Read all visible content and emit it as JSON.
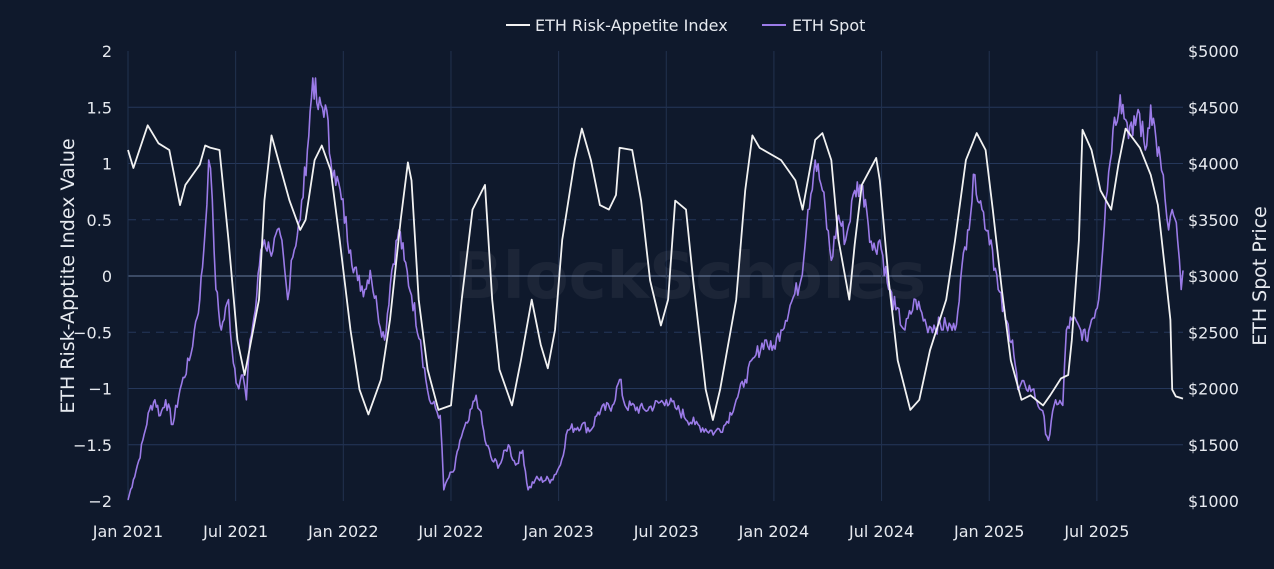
{
  "chart_data": {
    "type": "line",
    "title": "",
    "watermark": "BlockScholes",
    "legend": {
      "placement": "top-center",
      "entries": [
        "ETH Risk-Appetite Index",
        "ETH Spot"
      ]
    },
    "x_unit": "months since Jan 2021",
    "xlim": [
      0,
      58.8
    ],
    "x_ticks": [
      {
        "label": "Jan 2021",
        "value": 0
      },
      {
        "label": "Jul 2021",
        "value": 6
      },
      {
        "label": "Jan 2022",
        "value": 12
      },
      {
        "label": "Jul 2022",
        "value": 18
      },
      {
        "label": "Jan 2023",
        "value": 24
      },
      {
        "label": "Jul 2023",
        "value": 30
      },
      {
        "label": "Jan 2024",
        "value": 36
      },
      {
        "label": "Jul 2024",
        "value": 42
      },
      {
        "label": "Jan 2025",
        "value": 48
      },
      {
        "label": "Jul 2025",
        "value": 54
      }
    ],
    "y_left": {
      "label": "ETH Risk-Apptite Index Value",
      "ylim": [
        -2,
        2
      ],
      "ticks": [
        {
          "v": 2,
          "label": "2"
        },
        {
          "v": 1.5,
          "label": "1.5"
        },
        {
          "v": 1,
          "label": "1"
        },
        {
          "v": 0.5,
          "label": "0.5"
        },
        {
          "v": 0,
          "label": "0"
        },
        {
          "v": -0.5,
          "label": "−0.5"
        },
        {
          "v": -1,
          "label": "−1"
        },
        {
          "v": -1.5,
          "label": "−1.5"
        },
        {
          "v": -2,
          "label": "−2"
        }
      ],
      "dashed": [
        0.5,
        -0.5
      ]
    },
    "y_right": {
      "label": "ETH Spot Price",
      "ylim": [
        1000,
        5000
      ],
      "ticks": [
        {
          "v": 5000,
          "label": "$5000"
        },
        {
          "v": 4500,
          "label": "$4500"
        },
        {
          "v": 4000,
          "label": "$4000"
        },
        {
          "v": 3500,
          "label": "$3500"
        },
        {
          "v": 3000,
          "label": "$3000"
        },
        {
          "v": 2500,
          "label": "$2500"
        },
        {
          "v": 2000,
          "label": "$2000"
        },
        {
          "v": 1500,
          "label": "$1500"
        },
        {
          "v": 1000,
          "label": "$1000"
        }
      ]
    },
    "series": [
      {
        "name": "ETH Risk-Appetite Index",
        "axis": "left",
        "color": "#f2f2f2",
        "points": [
          [
            0,
            1.12
          ],
          [
            0.3,
            0.96
          ],
          [
            1.1,
            1.34
          ],
          [
            1.7,
            1.18
          ],
          [
            2.3,
            1.12
          ],
          [
            2.9,
            0.63
          ],
          [
            3.2,
            0.81
          ],
          [
            4.0,
            0.99
          ],
          [
            4.3,
            1.16
          ],
          [
            4.6,
            1.14
          ],
          [
            5.1,
            1.12
          ],
          [
            5.6,
            0.32
          ],
          [
            6.1,
            -0.57
          ],
          [
            6.5,
            -0.88
          ],
          [
            7.3,
            -0.21
          ],
          [
            7.6,
            0.67
          ],
          [
            8.0,
            1.25
          ],
          [
            9.0,
            0.67
          ],
          [
            9.6,
            0.41
          ],
          [
            9.9,
            0.5
          ],
          [
            10.4,
            1.03
          ],
          [
            10.8,
            1.16
          ],
          [
            11.3,
            0.94
          ],
          [
            11.8,
            0.32
          ],
          [
            12.4,
            -0.48
          ],
          [
            12.9,
            -1.01
          ],
          [
            13.4,
            -1.23
          ],
          [
            14.1,
            -0.92
          ],
          [
            14.6,
            -0.39
          ],
          [
            15.2,
            0.5
          ],
          [
            15.6,
            1.01
          ],
          [
            15.8,
            0.85
          ],
          [
            16.2,
            -0.21
          ],
          [
            16.7,
            -0.83
          ],
          [
            17.3,
            -1.19
          ],
          [
            18.0,
            -1.15
          ],
          [
            18.6,
            -0.21
          ],
          [
            19.2,
            0.59
          ],
          [
            19.9,
            0.81
          ],
          [
            20.3,
            -0.21
          ],
          [
            20.7,
            -0.83
          ],
          [
            21.4,
            -1.15
          ],
          [
            21.9,
            -0.75
          ],
          [
            22.5,
            -0.21
          ],
          [
            23.0,
            -0.61
          ],
          [
            23.4,
            -0.82
          ],
          [
            23.8,
            -0.48
          ],
          [
            24.2,
            0.32
          ],
          [
            24.9,
            1.03
          ],
          [
            25.3,
            1.31
          ],
          [
            25.8,
            1.03
          ],
          [
            26.3,
            0.63
          ],
          [
            26.8,
            0.59
          ],
          [
            27.2,
            0.72
          ],
          [
            27.4,
            1.14
          ],
          [
            28.1,
            1.12
          ],
          [
            28.6,
            0.67
          ],
          [
            29.1,
            -0.04
          ],
          [
            29.7,
            -0.44
          ],
          [
            30.1,
            -0.21
          ],
          [
            30.5,
            0.67
          ],
          [
            31.1,
            0.59
          ],
          [
            31.5,
            -0.04
          ],
          [
            32.2,
            -1.01
          ],
          [
            32.6,
            -1.28
          ],
          [
            33.0,
            -1.01
          ],
          [
            33.9,
            -0.21
          ],
          [
            34.4,
            0.76
          ],
          [
            34.8,
            1.25
          ],
          [
            35.2,
            1.14
          ],
          [
            36.4,
            1.03
          ],
          [
            37.2,
            0.85
          ],
          [
            37.6,
            0.59
          ],
          [
            38.3,
            1.21
          ],
          [
            38.7,
            1.27
          ],
          [
            39.2,
            1.03
          ],
          [
            39.6,
            0.32
          ],
          [
            40.2,
            -0.21
          ],
          [
            40.5,
            0.28
          ],
          [
            40.9,
            0.81
          ],
          [
            41.7,
            1.05
          ],
          [
            41.9,
            0.85
          ],
          [
            42.4,
            -0.04
          ],
          [
            42.9,
            -0.75
          ],
          [
            43.6,
            -1.19
          ],
          [
            44.1,
            -1.1
          ],
          [
            44.7,
            -0.66
          ],
          [
            45.6,
            -0.21
          ],
          [
            46.1,
            0.32
          ],
          [
            46.7,
            1.03
          ],
          [
            47.3,
            1.27
          ],
          [
            47.8,
            1.12
          ],
          [
            48.2,
            0.59
          ],
          [
            48.7,
            -0.12
          ],
          [
            49.2,
            -0.75
          ],
          [
            49.8,
            -1.1
          ],
          [
            50.3,
            -1.06
          ],
          [
            51.0,
            -1.15
          ],
          [
            51.4,
            -1.06
          ],
          [
            52.0,
            -0.91
          ],
          [
            52.4,
            -0.88
          ],
          [
            52.6,
            -0.57
          ],
          [
            53.0,
            0.32
          ],
          [
            53.2,
            1.3
          ],
          [
            53.7,
            1.12
          ],
          [
            54.2,
            0.76
          ],
          [
            54.8,
            0.59
          ],
          [
            55.2,
            0.99
          ],
          [
            55.6,
            1.31
          ],
          [
            56.4,
            1.14
          ],
          [
            57.0,
            0.9
          ],
          [
            57.4,
            0.63
          ],
          [
            57.8,
            0.05
          ],
          [
            58.1,
            -0.39
          ],
          [
            58.2,
            -1.01
          ],
          [
            58.4,
            -1.07
          ],
          [
            58.8,
            -1.09
          ]
        ]
      },
      {
        "name": "ETH Spot",
        "axis": "right",
        "color": "#9b7be8",
        "points": [
          [
            0,
            1010
          ],
          [
            0.3,
            1190
          ],
          [
            0.6,
            1360
          ],
          [
            0.9,
            1590
          ],
          [
            1.2,
            1810
          ],
          [
            1.5,
            1900
          ],
          [
            1.8,
            1760
          ],
          [
            2.1,
            1900
          ],
          [
            2.5,
            1680
          ],
          [
            2.9,
            1990
          ],
          [
            3.5,
            2300
          ],
          [
            3.7,
            2520
          ],
          [
            4.0,
            2790
          ],
          [
            4.3,
            3410
          ],
          [
            4.5,
            4030
          ],
          [
            4.7,
            3680
          ],
          [
            4.9,
            2880
          ],
          [
            5.2,
            2520
          ],
          [
            5.6,
            2790
          ],
          [
            5.8,
            2340
          ],
          [
            6.1,
            2030
          ],
          [
            6.4,
            2120
          ],
          [
            6.6,
            1900
          ],
          [
            6.8,
            2430
          ],
          [
            7.1,
            2700
          ],
          [
            7.4,
            3230
          ],
          [
            7.6,
            3320
          ],
          [
            7.9,
            3230
          ],
          [
            8.5,
            3360
          ],
          [
            8.9,
            2790
          ],
          [
            9.1,
            3140
          ],
          [
            9.6,
            3500
          ],
          [
            10.0,
            4120
          ],
          [
            10.3,
            4760
          ],
          [
            10.6,
            4480
          ],
          [
            11.0,
            4520
          ],
          [
            11.3,
            4030
          ],
          [
            11.5,
            3940
          ],
          [
            11.9,
            3680
          ],
          [
            12.4,
            3230
          ],
          [
            12.8,
            2960
          ],
          [
            13.2,
            2880
          ],
          [
            13.5,
            3050
          ],
          [
            13.9,
            2700
          ],
          [
            14.3,
            2430
          ],
          [
            14.7,
            3050
          ],
          [
            15.1,
            3410
          ],
          [
            15.4,
            3140
          ],
          [
            15.8,
            2830
          ],
          [
            16.3,
            2430
          ],
          [
            16.6,
            2080
          ],
          [
            16.8,
            1900
          ],
          [
            17.4,
            1760
          ],
          [
            17.6,
            1100
          ],
          [
            17.8,
            1190
          ],
          [
            18.2,
            1280
          ],
          [
            18.5,
            1540
          ],
          [
            19.0,
            1720
          ],
          [
            19.4,
            1940
          ],
          [
            19.6,
            1810
          ],
          [
            19.9,
            1540
          ],
          [
            20.3,
            1360
          ],
          [
            20.7,
            1320
          ],
          [
            21.2,
            1500
          ],
          [
            21.6,
            1320
          ],
          [
            22.0,
            1450
          ],
          [
            22.3,
            1100
          ],
          [
            22.7,
            1190
          ],
          [
            23.6,
            1190
          ],
          [
            24.1,
            1320
          ],
          [
            24.5,
            1630
          ],
          [
            25.3,
            1680
          ],
          [
            25.8,
            1630
          ],
          [
            26.2,
            1790
          ],
          [
            27.0,
            1850
          ],
          [
            27.4,
            2080
          ],
          [
            27.7,
            1850
          ],
          [
            28.8,
            1810
          ],
          [
            30.0,
            1900
          ],
          [
            30.5,
            1830
          ],
          [
            31.6,
            1680
          ],
          [
            32.7,
            1610
          ],
          [
            33.3,
            1680
          ],
          [
            33.9,
            1900
          ],
          [
            34.4,
            2080
          ],
          [
            35.0,
            2300
          ],
          [
            35.5,
            2430
          ],
          [
            35.9,
            2340
          ],
          [
            36.4,
            2520
          ],
          [
            36.9,
            2740
          ],
          [
            37.5,
            2960
          ],
          [
            37.9,
            3590
          ],
          [
            38.3,
            4030
          ],
          [
            38.7,
            3760
          ],
          [
            39.2,
            3140
          ],
          [
            39.6,
            3540
          ],
          [
            40.0,
            3320
          ],
          [
            40.5,
            3760
          ],
          [
            40.8,
            3810
          ],
          [
            41.1,
            3680
          ],
          [
            41.5,
            3230
          ],
          [
            41.9,
            3320
          ],
          [
            42.4,
            2880
          ],
          [
            42.8,
            2700
          ],
          [
            43.3,
            2520
          ],
          [
            43.9,
            2790
          ],
          [
            44.5,
            2560
          ],
          [
            45.6,
            2560
          ],
          [
            46.1,
            2520
          ],
          [
            46.4,
            2960
          ],
          [
            46.8,
            3410
          ],
          [
            47.2,
            3900
          ],
          [
            47.6,
            3590
          ],
          [
            48.1,
            3320
          ],
          [
            48.5,
            2880
          ],
          [
            48.9,
            2610
          ],
          [
            49.3,
            2430
          ],
          [
            49.6,
            1990
          ],
          [
            50.0,
            2030
          ],
          [
            50.4,
            1990
          ],
          [
            50.9,
            1810
          ],
          [
            51.3,
            1540
          ],
          [
            51.7,
            1900
          ],
          [
            52.1,
            1850
          ],
          [
            52.3,
            2520
          ],
          [
            52.6,
            2610
          ],
          [
            53.1,
            2520
          ],
          [
            53.4,
            2430
          ],
          [
            53.7,
            2610
          ],
          [
            54.1,
            2790
          ],
          [
            54.5,
            3680
          ],
          [
            54.9,
            4300
          ],
          [
            55.3,
            4610
          ],
          [
            55.6,
            4390
          ],
          [
            56.0,
            4250
          ],
          [
            56.3,
            4480
          ],
          [
            56.7,
            4120
          ],
          [
            57.0,
            4520
          ],
          [
            57.3,
            4210
          ],
          [
            57.6,
            3940
          ],
          [
            57.8,
            3680
          ],
          [
            58.0,
            3410
          ],
          [
            58.2,
            3590
          ],
          [
            58.5,
            3320
          ],
          [
            58.7,
            2880
          ],
          [
            58.8,
            3050
          ]
        ]
      }
    ]
  }
}
